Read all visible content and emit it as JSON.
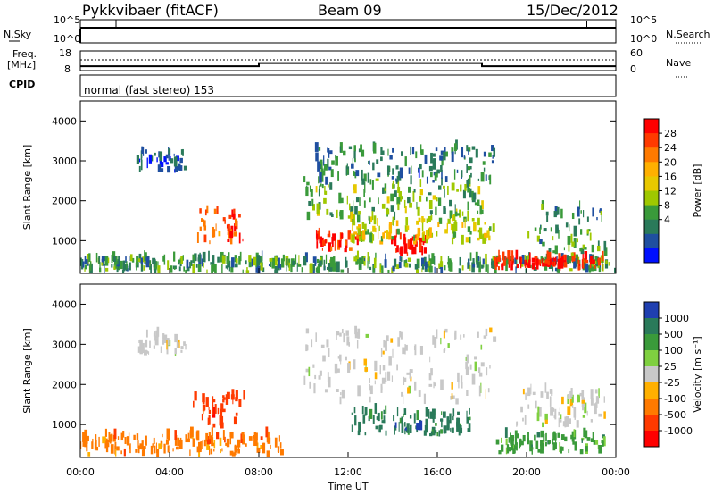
{
  "header": {
    "station": "Pykkvibaer (fitACF)",
    "beam": "Beam 09",
    "date": "15/Dec/2012"
  },
  "noise_panel": {
    "left_label": "N.Sky",
    "right_label": "N.Search",
    "left_ticks": [
      "10^5",
      "10^0"
    ],
    "right_ticks": [
      "10^5",
      "10^0"
    ]
  },
  "freq_panel": {
    "left_label_1": "Freq.",
    "left_label_2": "[MHz]",
    "right_label": "Nave",
    "left_ticks": [
      "18",
      "8"
    ],
    "right_ticks": [
      "60",
      "0"
    ]
  },
  "cpid_panel": {
    "label": "CPID",
    "text": "normal (fast stereo) 153"
  },
  "power_panel": {
    "colorbar_label": "Power [dB]",
    "colorbar_ticks": [
      "28",
      "24",
      "20",
      "16",
      "12",
      "8",
      "4"
    ],
    "colorbar_colors": [
      "#ff0000",
      "#ff3a00",
      "#ff7a00",
      "#ffb000",
      "#e8c800",
      "#9fc800",
      "#3a9a3a",
      "#2a7a5a",
      "#1f4fa0",
      "#0010ff"
    ]
  },
  "velocity_panel": {
    "colorbar_label": "Velocity [m s⁻¹]",
    "colorbar_ticks": [
      "1000",
      "500",
      "100",
      "25",
      "-25",
      "-100",
      "-500",
      "-1000"
    ],
    "colorbar_colors": [
      "#1f3fb0",
      "#2a7a5a",
      "#3a9a3a",
      "#7fd040",
      "#c8c8c8",
      "#ffb000",
      "#ff7a00",
      "#ff3a00",
      "#ff0000"
    ]
  },
  "chart_data": {
    "type": "heatmap",
    "xlabel": "Time UT",
    "ylabel": "Slant Range [km]",
    "x_ticks": [
      "00:00",
      "04:00",
      "08:00",
      "12:00",
      "16:00",
      "20:00",
      "00:00"
    ],
    "xlim": [
      0,
      24
    ],
    "ylim": [
      180,
      4500
    ],
    "y_ticks": [
      "1000",
      "2000",
      "3000",
      "4000"
    ],
    "y_tick_values": [
      1000,
      2000,
      3000,
      4000
    ],
    "freq_steps": [
      {
        "t0": 0,
        "t1": 8.0,
        "mhz": 10.2
      },
      {
        "t0": 8.0,
        "t1": 18.0,
        "mhz": 11.8
      },
      {
        "t0": 18.0,
        "t1": 24.0,
        "mhz": 10.2
      }
    ],
    "power_blobs": [
      {
        "t0": 0.0,
        "t1": 24.0,
        "r0": 180,
        "r1": 500,
        "level": 8
      },
      {
        "t0": 2.5,
        "t1": 4.8,
        "r0": 2700,
        "r1": 3200,
        "level": 3
      },
      {
        "t0": 5.0,
        "t1": 7.3,
        "r0": 900,
        "r1": 1700,
        "level": 24
      },
      {
        "t0": 10.0,
        "t1": 18.0,
        "r0": 1500,
        "r1": 2500,
        "level": 10
      },
      {
        "t0": 10.5,
        "t1": 12.5,
        "r0": 700,
        "r1": 1100,
        "level": 26
      },
      {
        "t0": 13.8,
        "t1": 15.5,
        "r0": 600,
        "r1": 1100,
        "level": 28
      },
      {
        "t0": 12.0,
        "t1": 18.5,
        "r0": 900,
        "r1": 1500,
        "level": 14
      },
      {
        "t0": 18.5,
        "t1": 23.5,
        "r0": 250,
        "r1": 550,
        "level": 28
      },
      {
        "t0": 10.5,
        "t1": 18.5,
        "r0": 2400,
        "r1": 3300,
        "level": 6
      },
      {
        "t0": 20.0,
        "t1": 23.5,
        "r0": 600,
        "r1": 1800,
        "level": 8
      }
    ],
    "velocity_blobs": [
      {
        "t0": 0.0,
        "t1": 9.0,
        "r0": 180,
        "r1": 700,
        "vel": -100
      },
      {
        "t0": 2.5,
        "t1": 4.8,
        "r0": 2700,
        "r1": 3200,
        "vel": 0
      },
      {
        "t0": 5.0,
        "t1": 7.3,
        "r0": 900,
        "r1": 1700,
        "vel": -500
      },
      {
        "t0": 10.0,
        "t1": 18.5,
        "r0": 1500,
        "r1": 3300,
        "vel": 0
      },
      {
        "t0": 12.0,
        "t1": 17.5,
        "r0": 700,
        "r1": 1300,
        "vel": 500
      },
      {
        "t0": 18.5,
        "t1": 23.5,
        "r0": 250,
        "r1": 700,
        "vel": 100
      },
      {
        "t0": 19.5,
        "t1": 23.5,
        "r0": 900,
        "r1": 1800,
        "vel": 0
      }
    ]
  }
}
